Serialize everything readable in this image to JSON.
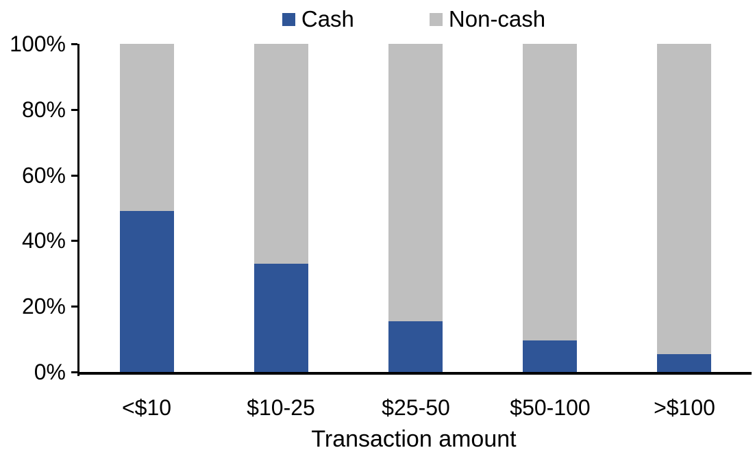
{
  "chart_data": {
    "type": "bar",
    "subtype": "100-percent-stacked-column",
    "title": "",
    "xlabel": "Transaction amount",
    "ylabel": "",
    "categories": [
      "<$10",
      "$10-25",
      "$25-50",
      "$50-100",
      ">$100"
    ],
    "series": [
      {
        "name": "Cash",
        "color": "#2F5597",
        "values": [
          49,
          33,
          15.5,
          9.5,
          5.5
        ]
      },
      {
        "name": "Non-cash",
        "color": "#BFBFBF",
        "values": [
          51,
          67,
          84.5,
          90.5,
          94.5
        ]
      }
    ],
    "y_ticks": [
      "0%",
      "20%",
      "40%",
      "60%",
      "80%",
      "100%"
    ],
    "ylim": [
      0,
      100
    ],
    "grid": false,
    "legend_position": "top-center",
    "axis_color": "#000000",
    "background_color": "#FFFFFF"
  }
}
